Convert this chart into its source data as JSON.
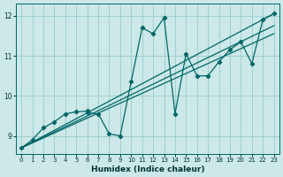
{
  "xlabel": "Humidex (Indice chaleur)",
  "bg_color": "#cce8e8",
  "line_color": "#006666",
  "grid_color": "#99cccc",
  "xlim": [
    -0.5,
    23.5
  ],
  "ylim": [
    8.55,
    12.3
  ],
  "xticks": [
    0,
    1,
    2,
    3,
    4,
    5,
    6,
    7,
    8,
    9,
    10,
    11,
    12,
    13,
    14,
    15,
    16,
    17,
    18,
    19,
    20,
    21,
    22,
    23
  ],
  "yticks": [
    9,
    10,
    11,
    12
  ],
  "curve1_x": [
    0,
    1,
    2,
    3,
    4,
    5,
    6,
    6,
    7,
    8,
    9,
    10,
    11,
    12,
    13,
    14,
    15,
    16,
    17,
    18,
    19,
    20,
    21,
    22,
    23
  ],
  "curve1_y": [
    8.7,
    8.9,
    9.2,
    9.35,
    9.55,
    9.6,
    9.62,
    9.58,
    9.55,
    9.05,
    9.0,
    10.35,
    11.7,
    11.55,
    11.95,
    9.55,
    11.05,
    10.5,
    10.5,
    10.85,
    11.15,
    11.35,
    10.8,
    11.9,
    12.05
  ],
  "trend1_x": [
    0,
    23
  ],
  "trend1_y": [
    8.7,
    12.05
  ],
  "trend2_x": [
    0,
    23
  ],
  "trend2_y": [
    8.7,
    11.75
  ],
  "trend3_x": [
    0,
    23
  ],
  "trend3_y": [
    8.7,
    11.55
  ]
}
